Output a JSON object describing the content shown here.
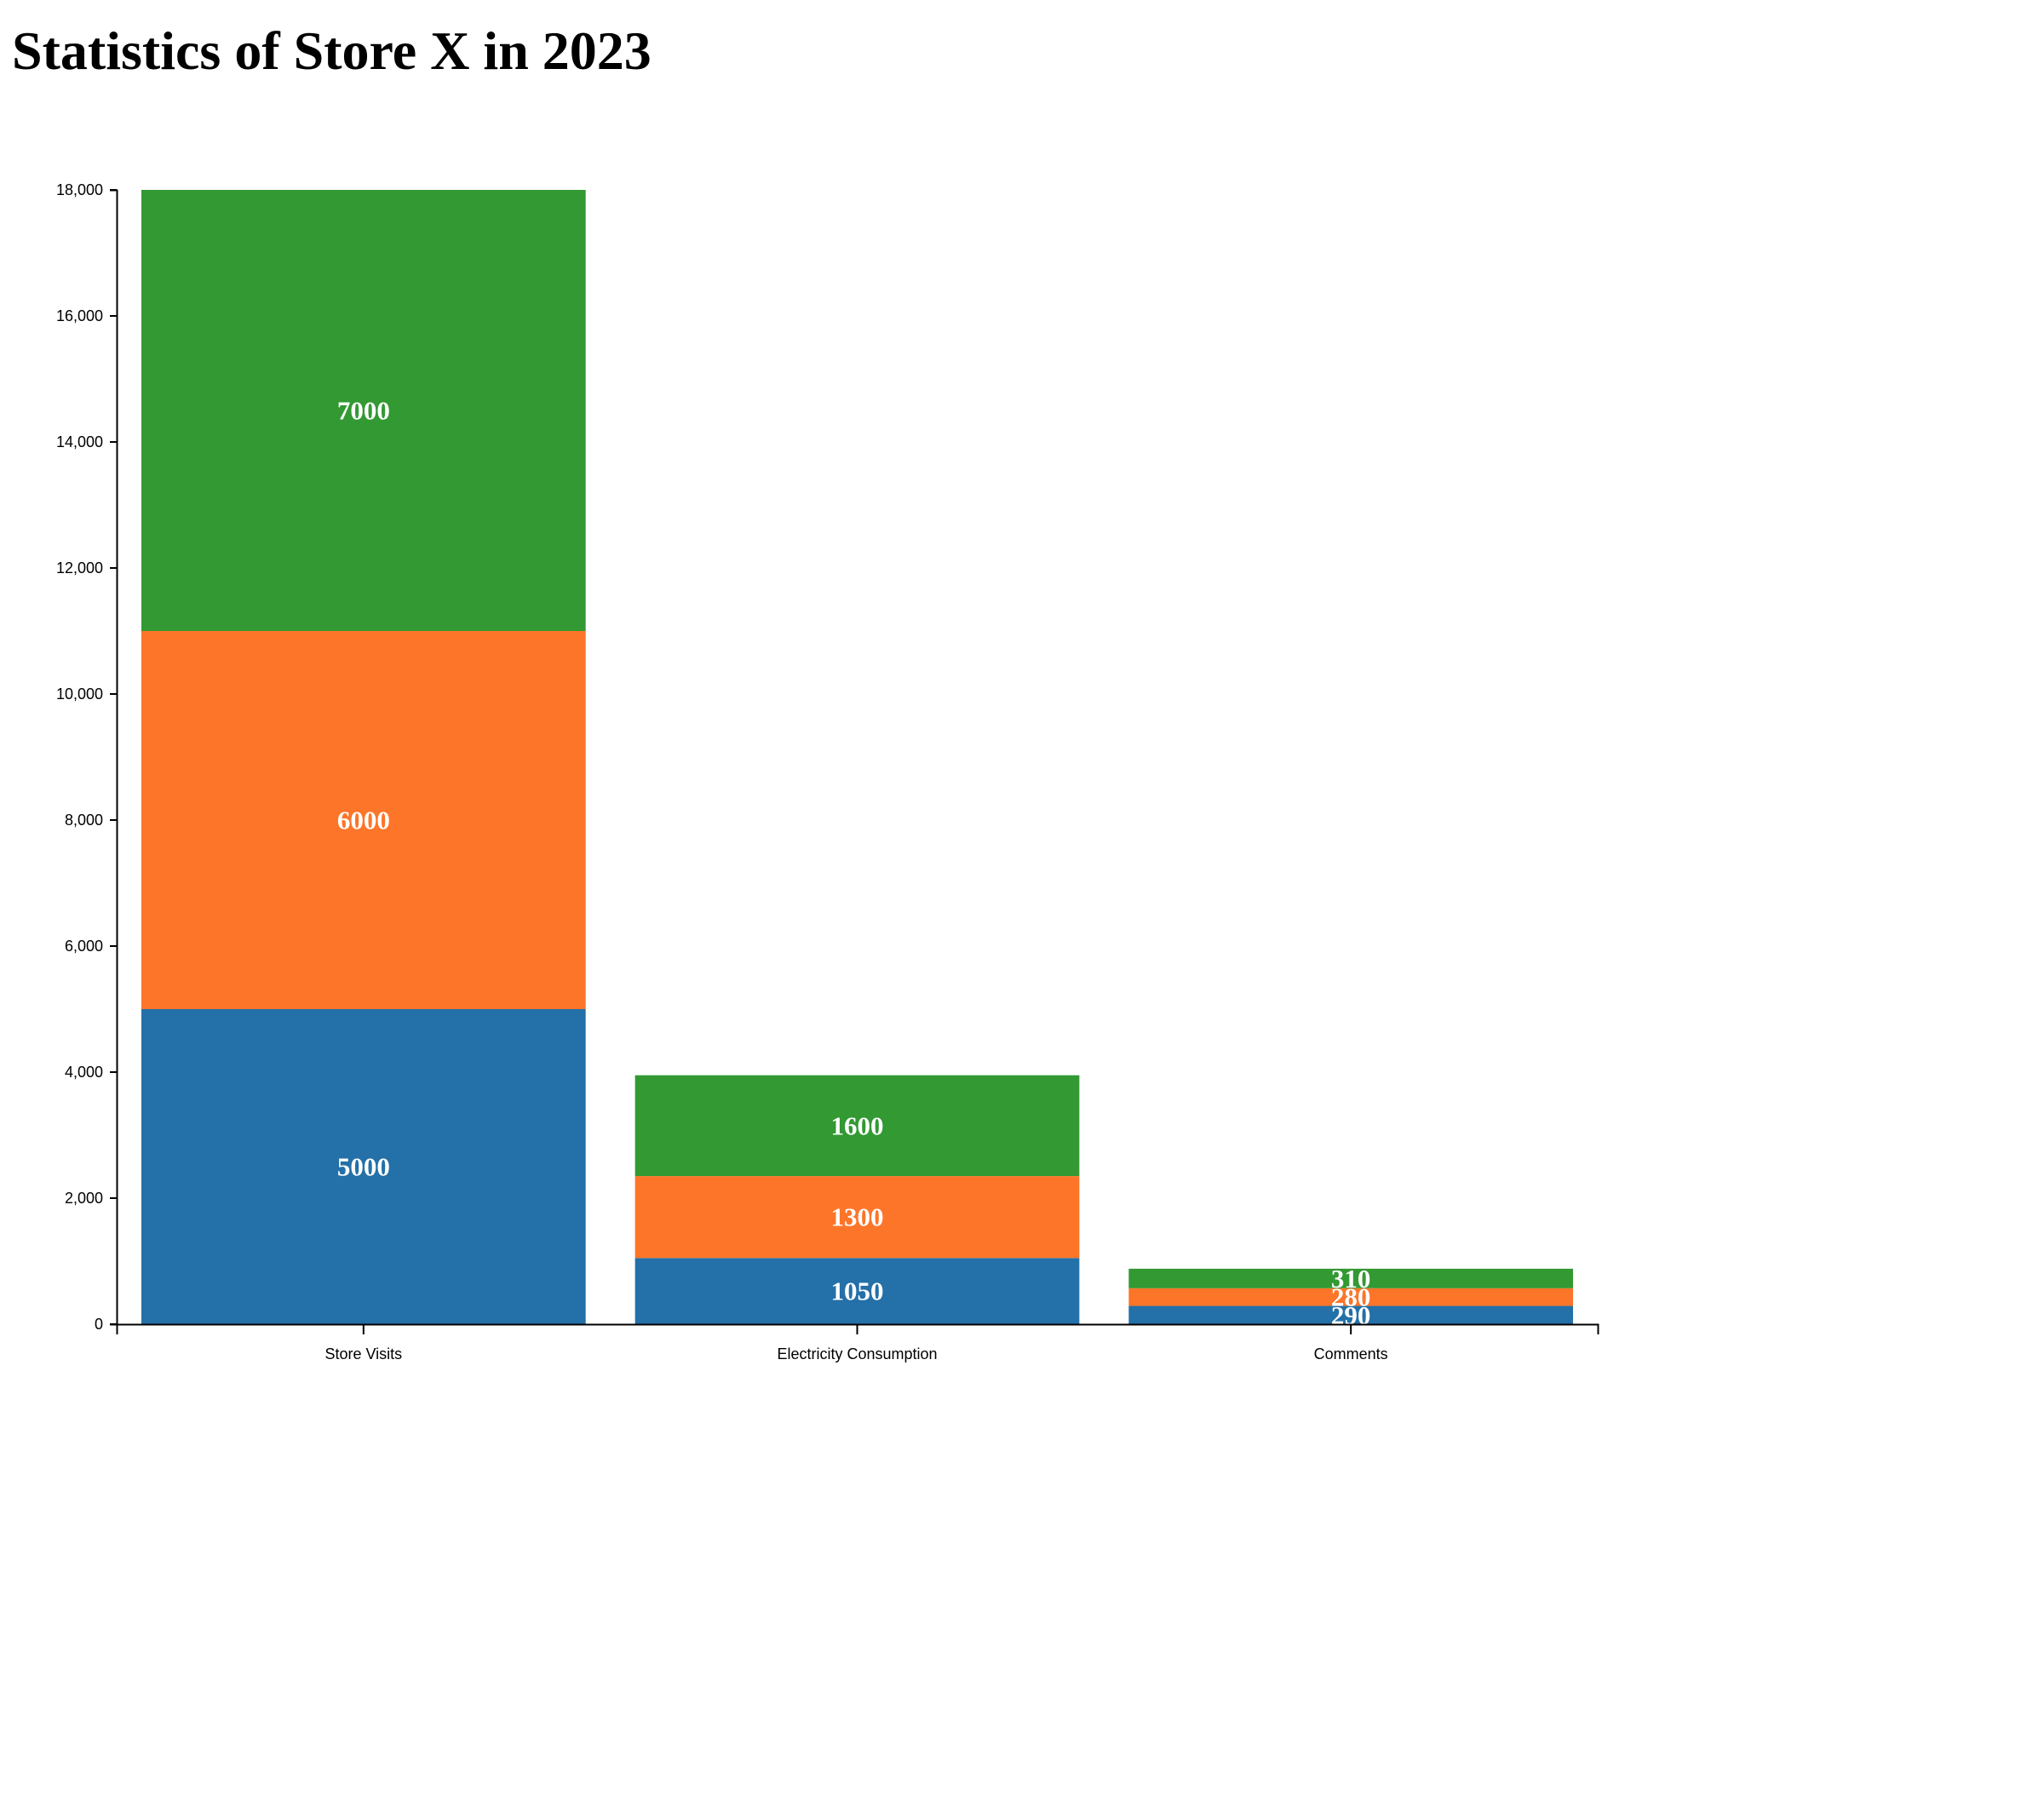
{
  "title": "Statistics of Store X in 2023",
  "chart_data": {
    "type": "bar",
    "stacked": true,
    "categories": [
      "Store Visits",
      "Electricity Consumption",
      "Comments"
    ],
    "series": [
      {
        "values": [
          5000,
          1050,
          290
        ],
        "color": "#2470a8"
      },
      {
        "values": [
          6000,
          1300,
          280
        ],
        "color": "#fd7529"
      },
      {
        "values": [
          7000,
          1600,
          310
        ],
        "color": "#339933"
      }
    ],
    "ylim": [
      0,
      18000
    ],
    "yticks": [
      0,
      2000,
      4000,
      6000,
      8000,
      10000,
      12000,
      14000,
      16000,
      18000
    ],
    "xlabel": "",
    "ylabel": "",
    "grid": false,
    "legend": "none",
    "data_labels": true
  }
}
